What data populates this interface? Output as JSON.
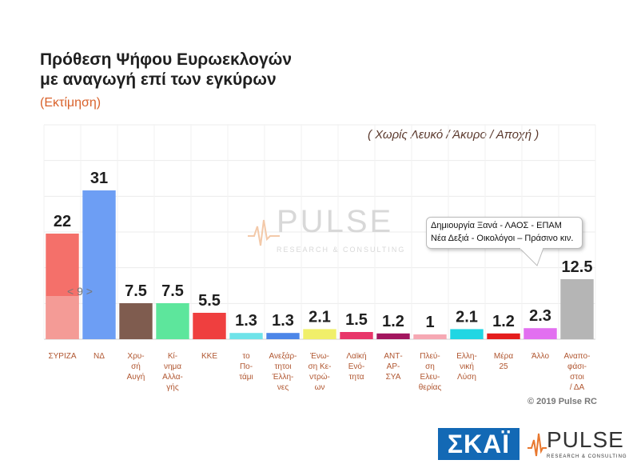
{
  "header": {
    "title_line1": "Πρόθεση Ψήφου Ευρωεκλογών",
    "title_line2": "με αναγωγή επί των εγκύρων",
    "subtitle": "(Εκτίμηση)",
    "note": "( Χωρίς Λευκό / Άκυρο / Αποχή )"
  },
  "callout": {
    "line1": "Δημιουργία Ξανά - ΛΑΟΣ - ΕΠΑΜ",
    "line2": "Νέα Δεξιά - Οικολόγοι – Πράσινο κιν."
  },
  "inset_label": "< 9 >",
  "watermark": {
    "word": "PULSE",
    "sub": "RESEARCH & CONSULTING"
  },
  "copyright": "© 2019 Pulse RC",
  "logos": {
    "skai": "ΣΚΑΪ",
    "pulse": "PULSE",
    "pulse_sub": "RESEARCH & CONSULTING"
  },
  "chart_data": {
    "type": "bar",
    "categories": [
      [
        "ΣΥΡΙΖΑ"
      ],
      [
        "ΝΔ"
      ],
      [
        "Χρυ-",
        "σή",
        "Αυγή"
      ],
      [
        "Κί-",
        "νημα",
        "Αλλα-",
        "γής"
      ],
      [
        "ΚΚΕ"
      ],
      [
        "το",
        "Πο-",
        "τάμι"
      ],
      [
        "Ανεξάρ-",
        "τητοι",
        "Έλλη-",
        "νες"
      ],
      [
        "Ένω-",
        "ση Κε-",
        "ντρώ-",
        "ων"
      ],
      [
        "Λαϊκή",
        "Ενό-",
        "τητα"
      ],
      [
        "ΑΝΤ-",
        "ΑΡ-",
        "ΣΥΑ"
      ],
      [
        "Πλεύ-",
        "ση",
        "Ελευ-",
        "θερίας"
      ],
      [
        "Ελλη-",
        "νική",
        "Λύση"
      ],
      [
        "Μέρα",
        "25"
      ],
      [
        "Άλλο"
      ],
      [
        "Αναπο-",
        "φάσι-",
        "στοι",
        "/ ΔΑ"
      ]
    ],
    "values": [
      22,
      31,
      7.5,
      7.5,
      5.5,
      1.3,
      1.3,
      2.1,
      1.5,
      1.2,
      1,
      2.1,
      1.2,
      2.3,
      12.5
    ],
    "labels": [
      "22",
      "31",
      "7.5",
      "7.5",
      "5.5",
      "1.3",
      "1.3",
      "2.1",
      "1.5",
      "1.2",
      "1",
      "2.1",
      "1.2",
      "2.3",
      "12.5"
    ],
    "colors": [
      "#f4706a",
      "#6d9ef4",
      "#7f5c4f",
      "#5de69c",
      "#ef3f3f",
      "#6fe3e9",
      "#4c86e8",
      "#f0ef6a",
      "#e8366a",
      "#a2165e",
      "#f6a8b3",
      "#21d6e3",
      "#e41d1d",
      "#e26ff0",
      "#b5b5b5"
    ],
    "inset_bar": {
      "index": 0,
      "value": 9,
      "color": "#f49b96"
    },
    "ylim": [
      0,
      32
    ],
    "grid": true
  }
}
